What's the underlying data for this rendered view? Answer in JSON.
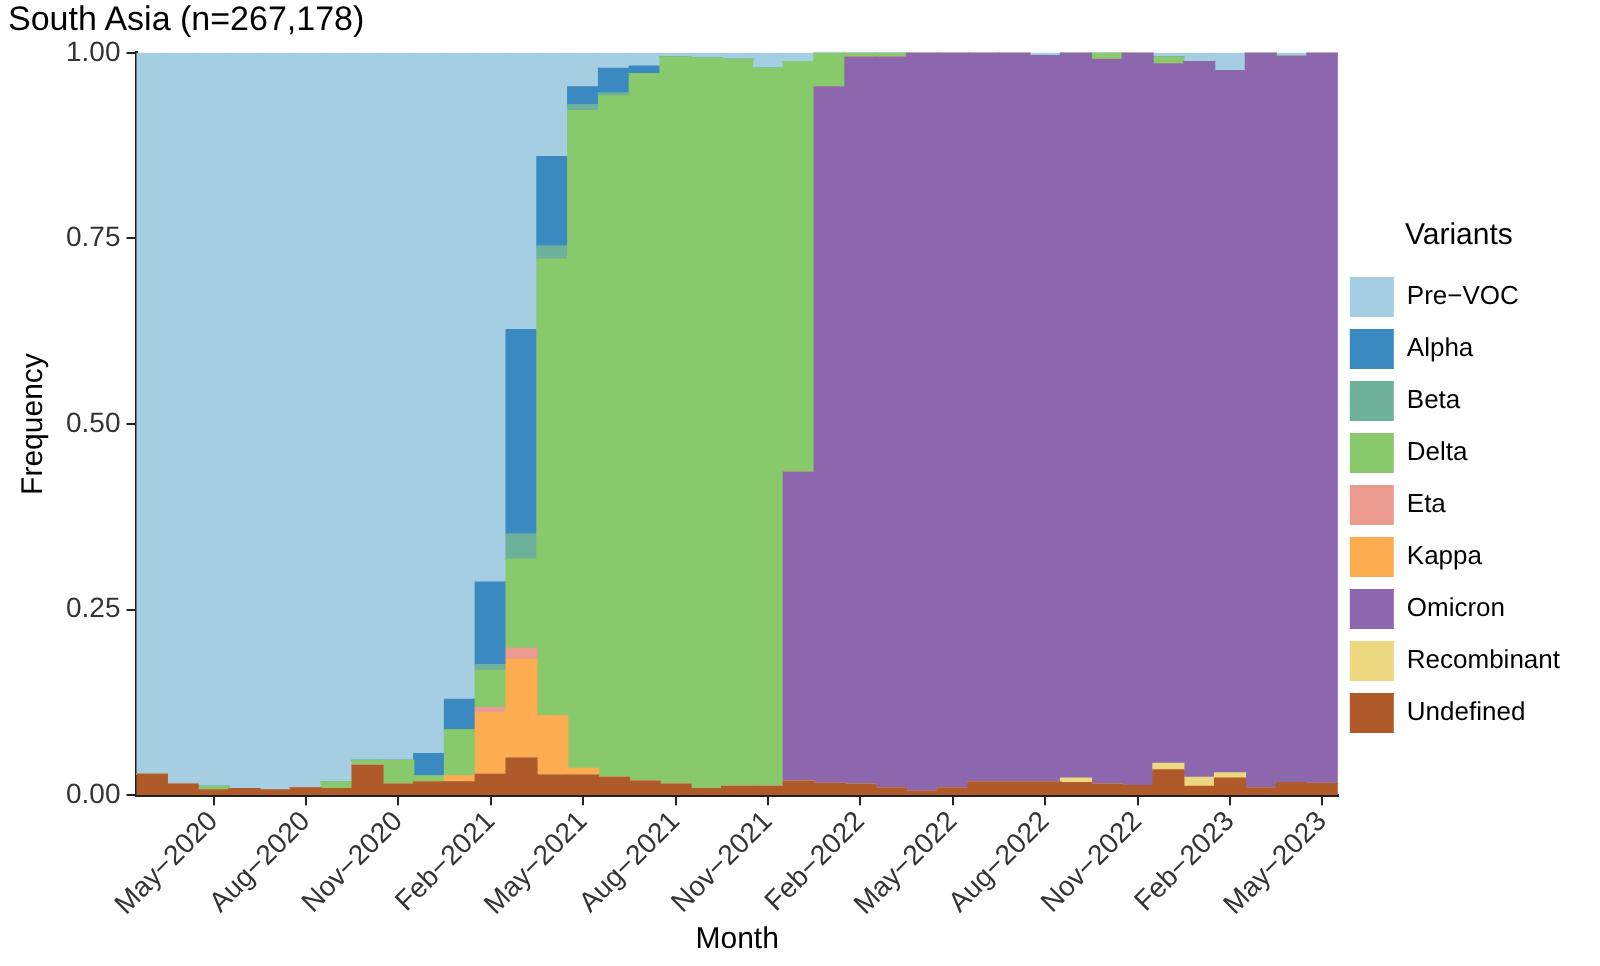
{
  "chart_data": {
    "type": "bar",
    "stacked": true,
    "title": "South Asia (n=267,178)",
    "xlabel": "Month",
    "ylabel": "Frequency",
    "legend_title": "Variants",
    "legend": "right",
    "grid": false,
    "categories": [
      null,
      null,
      "May−2020",
      null,
      null,
      "Aug−2020",
      null,
      null,
      "Nov−2020",
      null,
      null,
      "Feb−2021",
      null,
      null,
      "May−2021",
      null,
      null,
      "Aug−2021",
      null,
      null,
      "Nov−2021",
      null,
      null,
      "Feb−2022",
      null,
      null,
      "May−2022",
      null,
      null,
      "Aug−2022",
      null,
      null,
      "Nov−2022",
      null,
      null,
      "Feb−2023",
      null,
      null,
      "May−2023"
    ],
    "ylim": [
      0,
      1
    ],
    "yticks": [
      {
        "value": 0,
        "label": "0.00"
      },
      {
        "value": 0.25,
        "label": "0.25"
      },
      {
        "value": 0.5,
        "label": "0.50"
      },
      {
        "value": 0.75,
        "label": "0.75"
      },
      {
        "value": 1,
        "label": "1.00"
      }
    ],
    "series": [
      {
        "name": "Undefined",
        "color": "#b15a29",
        "values": [
          0.028,
          0.015,
          0.007,
          0.009,
          0.007,
          0.01,
          0.009,
          0.04,
          0.015,
          0.018,
          0.018,
          0.028,
          0.05,
          0.027,
          0.027,
          0.024,
          0.019,
          0.015,
          0.009,
          0.012,
          0.012,
          0.019,
          0.016,
          0.015,
          0.01,
          0.005,
          0.01,
          0.018,
          0.018,
          0.018,
          0.017,
          0.015,
          0.013,
          0.034,
          0.012,
          0.023,
          0.01,
          0.017,
          0.016
        ]
      },
      {
        "name": "Recombinant",
        "color": "#edd882",
        "values": [
          0,
          0,
          0,
          0,
          0,
          0,
          0,
          0,
          0,
          0,
          0,
          0,
          0,
          0,
          0,
          0,
          0,
          0,
          0,
          0,
          0,
          0,
          0,
          0,
          0,
          0,
          0,
          0,
          0,
          0,
          0.006,
          0,
          0,
          0.009,
          0.012,
          0.007,
          0,
          0,
          0
        ]
      },
      {
        "name": "Omicron",
        "color": "#8d67ae",
        "values": [
          0,
          0,
          0,
          0,
          0,
          0,
          0,
          0,
          0,
          0,
          0,
          0,
          0,
          0,
          0,
          0,
          0,
          0,
          0,
          0,
          0,
          0.416,
          0.938,
          0.979,
          0.984,
          0.995,
          0.99,
          0.982,
          0.982,
          0.978,
          0.977,
          0.976,
          0.987,
          0.942,
          0.964,
          0.946,
          0.99,
          0.978,
          0.984
        ]
      },
      {
        "name": "Kappa",
        "color": "#fdad50",
        "values": [
          0,
          0,
          0,
          0,
          0,
          0,
          0,
          0,
          0,
          0,
          0.008,
          0.083,
          0.133,
          0.08,
          0.009,
          0,
          0,
          0,
          0,
          0,
          0,
          0,
          0,
          0,
          0,
          0,
          0,
          0,
          0,
          0,
          0,
          0,
          0,
          0,
          0,
          0,
          0,
          0,
          0
        ]
      },
      {
        "name": "Eta",
        "color": "#eb9a90",
        "values": [
          0,
          0,
          0,
          0,
          0,
          0,
          0,
          0,
          0,
          0,
          0,
          0.007,
          0.015,
          0,
          0,
          0,
          0,
          0,
          0,
          0,
          0,
          0,
          0,
          0,
          0,
          0,
          0,
          0,
          0,
          0,
          0,
          0,
          0,
          0,
          0,
          0,
          0,
          0,
          0
        ]
      },
      {
        "name": "Delta",
        "color": "#87c96b",
        "values": [
          0,
          0,
          0.005,
          0,
          0,
          0,
          0.009,
          0.007,
          0.032,
          0.008,
          0.062,
          0.05,
          0.12,
          0.615,
          0.886,
          0.918,
          0.953,
          0.979,
          0.984,
          0.979,
          0.967,
          0.553,
          0.046,
          0.006,
          0.006,
          0,
          0,
          0,
          0,
          0,
          0,
          0.009,
          0,
          0.009,
          0,
          0,
          0,
          0,
          0
        ]
      },
      {
        "name": "Beta",
        "color": "#6db19a",
        "values": [
          0,
          0,
          0,
          0,
          0,
          0,
          0,
          0,
          0,
          0,
          0,
          0.008,
          0.034,
          0.018,
          0.008,
          0.004,
          0,
          0,
          0,
          0,
          0,
          0,
          0,
          0,
          0,
          0,
          0,
          0,
          0,
          0,
          0,
          0,
          0,
          0,
          0,
          0,
          0,
          0,
          0
        ]
      },
      {
        "name": "Alpha",
        "color": "#3a89c0",
        "values": [
          0,
          0,
          0,
          0,
          0,
          0,
          0,
          0,
          0,
          0.03,
          0.041,
          0.111,
          0.275,
          0.12,
          0.024,
          0.033,
          0.01,
          0,
          0,
          0,
          0,
          0,
          0,
          0,
          0,
          0,
          0,
          0,
          0,
          0,
          0,
          0,
          0,
          0,
          0,
          0,
          0,
          0,
          0
        ]
      },
      {
        "name": "Pre−VOC",
        "color": "#a6cee3",
        "values": [
          0.972,
          0.985,
          0.988,
          0.991,
          0.993,
          0.99,
          0.982,
          0.953,
          0.953,
          0.944,
          0.871,
          0.713,
          0.373,
          0.14,
          0.046,
          0.021,
          0.018,
          0.006,
          0.007,
          0.009,
          0.021,
          0.012,
          0,
          0,
          0,
          0,
          0,
          0,
          0,
          0.004,
          0,
          0,
          0,
          0.006,
          0.012,
          0.024,
          0,
          0.005,
          0
        ]
      }
    ]
  }
}
